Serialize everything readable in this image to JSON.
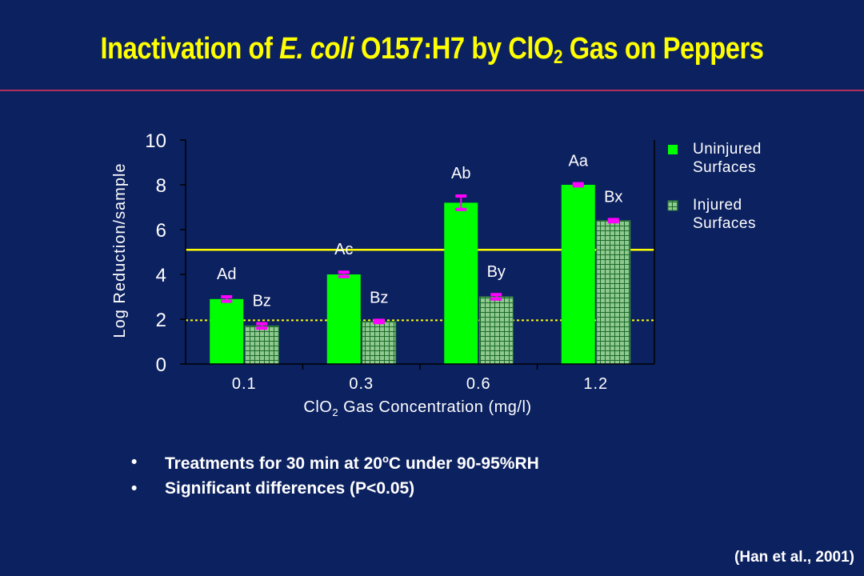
{
  "slide": {
    "title_part1": "Inactivation of ",
    "title_italic": "E. coli",
    "title_part2": " O157:H7 by ClO",
    "title_sub": "2",
    "title_part3": " Gas on Peppers",
    "bullet_char": "•",
    "bullet1_a": "Treatments for 30 min at 20",
    "bullet1_sup": "o",
    "bullet1_b": "C under 90-95%RH",
    "bullet2": "Significant differences (P<0.05)",
    "citation": "(Han et al., 2001)"
  },
  "colors": {
    "background": "#0c2160",
    "title": "#ffff00",
    "uninjured": "#00ff00",
    "injured": "#8fc98f",
    "error_bar": "#ff00ff",
    "ref_line": "#ffff00"
  },
  "chart_data": {
    "type": "bar",
    "categories": [
      "0.1",
      "0.3",
      "0.6",
      "1.2"
    ],
    "series": [
      {
        "name": "Uninjured Surfaces",
        "values": [
          2.9,
          4.0,
          7.2,
          8.0
        ],
        "errors": [
          0.1,
          0.1,
          0.3,
          0.05
        ],
        "labels": [
          "Ad",
          "Ac",
          "Ab",
          "Aa"
        ]
      },
      {
        "name": "Injured Surfaces",
        "values": [
          1.7,
          1.9,
          3.0,
          6.4
        ],
        "errors": [
          0.1,
          0.05,
          0.1,
          0.05
        ],
        "labels": [
          "Bz",
          "Bz",
          "By",
          "Bx"
        ]
      }
    ],
    "ylim": [
      0,
      10
    ],
    "yticks": [
      0,
      2,
      4,
      6,
      8,
      10
    ],
    "ylabel": "Log Reduction/sample",
    "xlabel_a": "ClO",
    "xlabel_sub": "2",
    "xlabel_b": " Gas Concentration (mg/l)",
    "reference_lines": [
      {
        "value": 5.1,
        "style": "solid"
      },
      {
        "value": 1.95,
        "style": "dotted"
      }
    ],
    "legend_position": "right",
    "grid": false
  }
}
